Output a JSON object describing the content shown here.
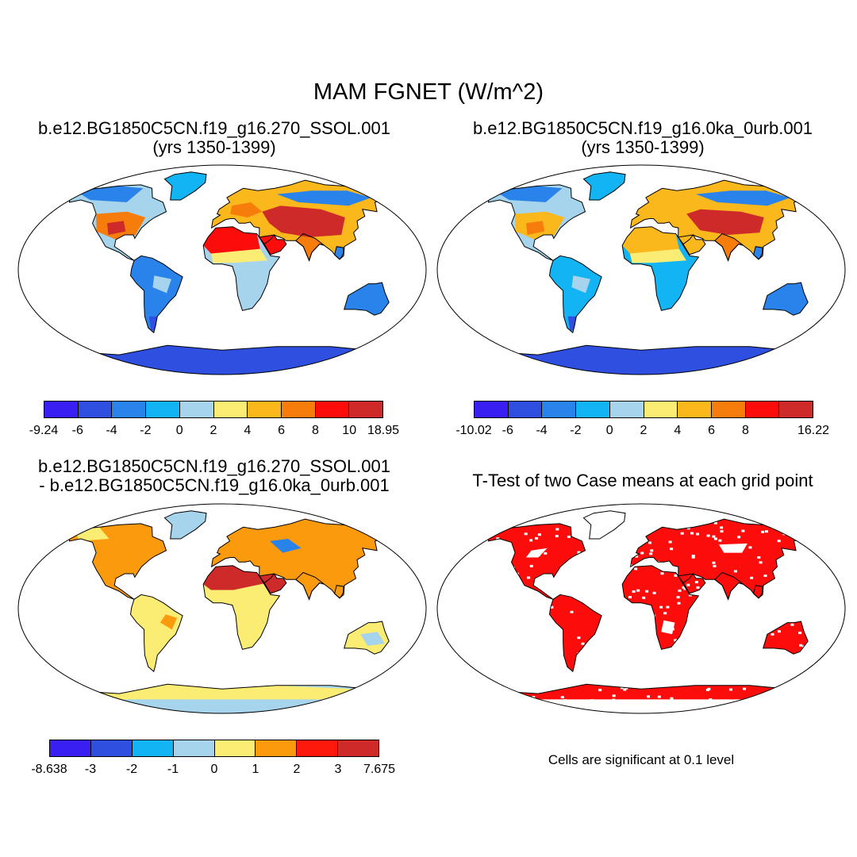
{
  "figure": {
    "title": "MAM FGNET (W/m^2)"
  },
  "panels": [
    {
      "id": "case1",
      "title_line1": "b.e12.BG1850C5CN.f19_g16.270_SSOL.001",
      "title_line2": "(yrs 1350-1399)",
      "style": "case1",
      "colorbar": {
        "colors": [
          "#3a1ff2",
          "#2e4fe0",
          "#2a83ea",
          "#12b4f3",
          "#a6d4ec",
          "#fbec74",
          "#fbb81c",
          "#f67c0c",
          "#fd0c0c",
          "#cf2a2a"
        ],
        "labels": [
          "-9.24",
          "-6",
          "-4",
          "-2",
          "0",
          "2",
          "4",
          "6",
          "8",
          "10",
          "18.95"
        ]
      }
    },
    {
      "id": "case2",
      "title_line1": "b.e12.BG1850C5CN.f19_g16.0ka_0urb.001",
      "title_line2": "(yrs 1350-1399)",
      "style": "case2",
      "colorbar": {
        "colors": [
          "#3a1ff2",
          "#2e4fe0",
          "#2a83ea",
          "#12b4f3",
          "#a6d4ec",
          "#fbec74",
          "#fbb81c",
          "#f67c0c",
          "#fd0c0c",
          "#cf2a2a"
        ],
        "labels": [
          "-10.02",
          "-6",
          "-4",
          "-2",
          "0",
          "2",
          "4",
          "6",
          "8",
          "",
          "16.22"
        ]
      }
    },
    {
      "id": "diff",
      "title_line1": "b.e12.BG1850C5CN.f19_g16.270_SSOL.001",
      "title_line2": "- b.e12.BG1850C5CN.f19_g16.0ka_0urb.001",
      "style": "diff",
      "colorbar": {
        "colors": [
          "#3a1ff2",
          "#2e4fe0",
          "#12b4f3",
          "#a6d4ec",
          "#fbec74",
          "#fb9a0c",
          "#fd1a0c",
          "#cf2a2a"
        ],
        "labels": [
          "-8.638",
          "-3",
          "-2",
          "-1",
          "0",
          "1",
          "2",
          "3",
          "7.675"
        ]
      }
    },
    {
      "id": "ttest",
      "title_line1": "T-Test of two Case means at each grid point",
      "title_line2": "",
      "style": "ttest",
      "note": "Cells are significant at 0.1 level"
    }
  ]
}
